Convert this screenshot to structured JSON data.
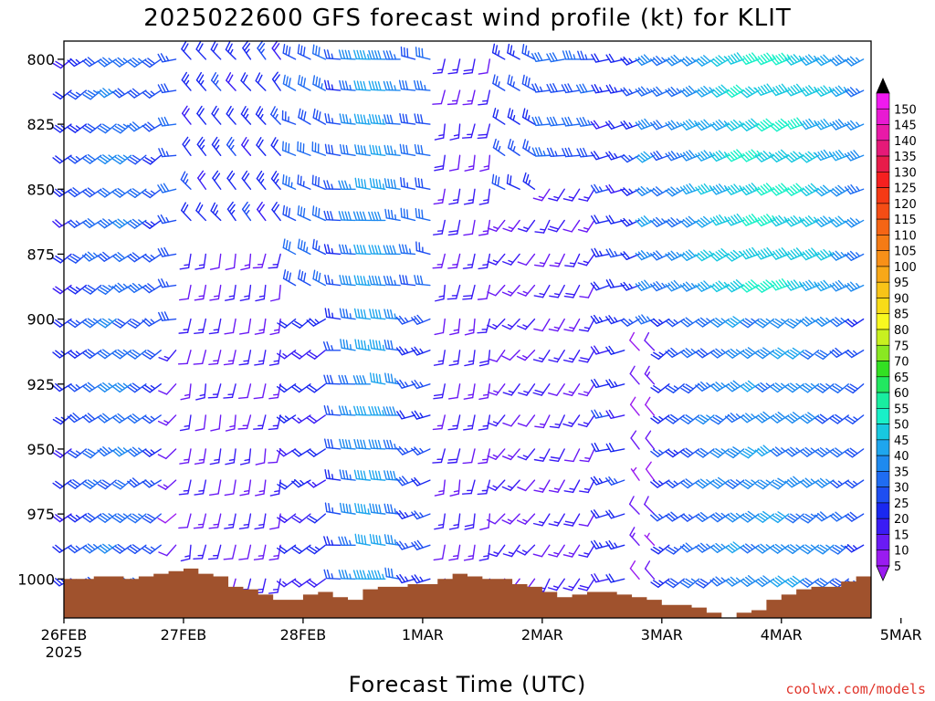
{
  "chart_data": {
    "type": "wind-barb time-height",
    "title": "2025022600 GFS forecast wind profile (kt) for KLIT",
    "xlabel": "Forecast Time (UTC)",
    "credit": "coolwx.com/models",
    "x_ticks": [
      "26FEB",
      "27FEB",
      "28FEB",
      "1MAR",
      "2MAR",
      "3MAR",
      "4MAR",
      "5MAR"
    ],
    "x_first_year": "2025",
    "x_range_hours": [
      0,
      162
    ],
    "x_tick_interval_hours": 24,
    "y_ticks": [
      800,
      825,
      850,
      875,
      900,
      925,
      950,
      975,
      1000
    ],
    "ylim": [
      793,
      1015
    ],
    "levels": [
      800,
      812,
      825,
      837,
      850,
      862,
      875,
      887,
      900,
      912,
      925,
      937,
      950,
      962,
      975,
      987,
      1000
    ],
    "time_step_hours": 3,
    "colorbar": {
      "levels": [
        5,
        10,
        15,
        20,
        25,
        30,
        35,
        40,
        45,
        50,
        55,
        60,
        65,
        70,
        75,
        80,
        85,
        90,
        95,
        100,
        105,
        110,
        115,
        120,
        125,
        130,
        135,
        140,
        145,
        150
      ],
      "colors": [
        "#9a1bf0",
        "#6a1af5",
        "#3a1cf5",
        "#1a28f0",
        "#1e4ef2",
        "#1f6cf2",
        "#1e8aef",
        "#1ea6ee",
        "#18c8e0",
        "#19f0c8",
        "#19eea0",
        "#22e860",
        "#33e022",
        "#8ae822",
        "#c8f020",
        "#f8f820",
        "#f8dc18",
        "#f8c418",
        "#f8a818",
        "#f89018",
        "#f57b15",
        "#f56515",
        "#f54d15",
        "#f53a15",
        "#f52020",
        "#e81c4a",
        "#e51a78",
        "#e81aa8",
        "#e81ad2",
        "#f01af0"
      ]
    },
    "terrain_color": "#a0522d",
    "terrain_pressure": [
      1000,
      1000,
      999,
      999,
      1000,
      999,
      998,
      997,
      996,
      998,
      999,
      1003,
      1004,
      1006,
      1008,
      1008,
      1006,
      1005,
      1007,
      1008,
      1004,
      1003,
      1003,
      1002,
      1002,
      1000,
      998,
      999,
      1000,
      1000,
      1002,
      1003,
      1005,
      1007,
      1006,
      1005,
      1005,
      1006,
      1007,
      1008,
      1010,
      1010,
      1011,
      1013,
      1015,
      1013,
      1012,
      1008,
      1006,
      1004,
      1003,
      1003,
      1001,
      999,
      998,
      998,
      998
    ],
    "segments": [
      {
        "h0": 0,
        "h1": 21,
        "p0": 793,
        "p1": 1000,
        "dir": 235,
        "spd": 28,
        "ts": 2
      },
      {
        "h0": 21,
        "h1": 24,
        "p0": 793,
        "p1": 900,
        "dir": 260,
        "spd": 28,
        "ts": 0
      },
      {
        "h0": 21,
        "h1": 24,
        "p0": 912,
        "p1": 1000,
        "dir": 225,
        "spd": 12,
        "ts": 0
      },
      {
        "h0": 24,
        "h1": 45,
        "p0": 793,
        "p1": 862,
        "dir": 320,
        "spd": 22,
        "ts": 0
      },
      {
        "h0": 24,
        "h1": 45,
        "p0": 875,
        "p1": 1000,
        "dir": 190,
        "spd": 14,
        "ts": 0
      },
      {
        "h0": 45,
        "h1": 54,
        "p0": 793,
        "p1": 887,
        "dir": 295,
        "spd": 30,
        "ts": 0
      },
      {
        "h0": 45,
        "h1": 54,
        "p0": 900,
        "p1": 1000,
        "dir": 235,
        "spd": 20,
        "ts": 0
      },
      {
        "h0": 54,
        "h1": 69,
        "p0": 793,
        "p1": 1000,
        "dir": 275,
        "spd": 35,
        "ts": 1
      },
      {
        "h0": 69,
        "h1": 75,
        "p0": 793,
        "p1": 887,
        "dir": 280,
        "spd": 30,
        "ts": 0
      },
      {
        "h0": 69,
        "h1": 75,
        "p0": 900,
        "p1": 1000,
        "dir": 250,
        "spd": 25,
        "ts": 0
      },
      {
        "h0": 75,
        "h1": 87,
        "p0": 793,
        "p1": 1000,
        "dir": 190,
        "spd": 15,
        "ts": 0
      },
      {
        "h0": 87,
        "h1": 96,
        "p0": 793,
        "p1": 850,
        "dir": 300,
        "spd": 25,
        "ts": 0
      },
      {
        "h0": 87,
        "h1": 96,
        "p0": 862,
        "p1": 1000,
        "dir": 220,
        "spd": 14,
        "ts": 0
      },
      {
        "h0": 96,
        "h1": 108,
        "p0": 793,
        "p1": 837,
        "dir": 265,
        "spd": 30,
        "ts": 0
      },
      {
        "h0": 96,
        "h1": 108,
        "p0": 850,
        "p1": 1000,
        "dir": 210,
        "spd": 15,
        "ts": 0
      },
      {
        "h0": 108,
        "h1": 114,
        "p0": 793,
        "p1": 1000,
        "dir": 255,
        "spd": 22,
        "ts": 0
      },
      {
        "h0": 114,
        "h1": 120,
        "p0": 793,
        "p1": 900,
        "dir": 245,
        "spd": 32,
        "ts": 1
      },
      {
        "h0": 114,
        "h1": 120,
        "p0": 912,
        "p1": 1000,
        "dir": 320,
        "spd": 10,
        "ts": 0
      },
      {
        "h0": 120,
        "h1": 162,
        "p0": 793,
        "p1": 887,
        "dir": 245,
        "spd": 42,
        "ts": 2
      },
      {
        "h0": 120,
        "h1": 162,
        "p0": 900,
        "p1": 1000,
        "dir": 235,
        "spd": 32,
        "ts": 1
      }
    ]
  }
}
